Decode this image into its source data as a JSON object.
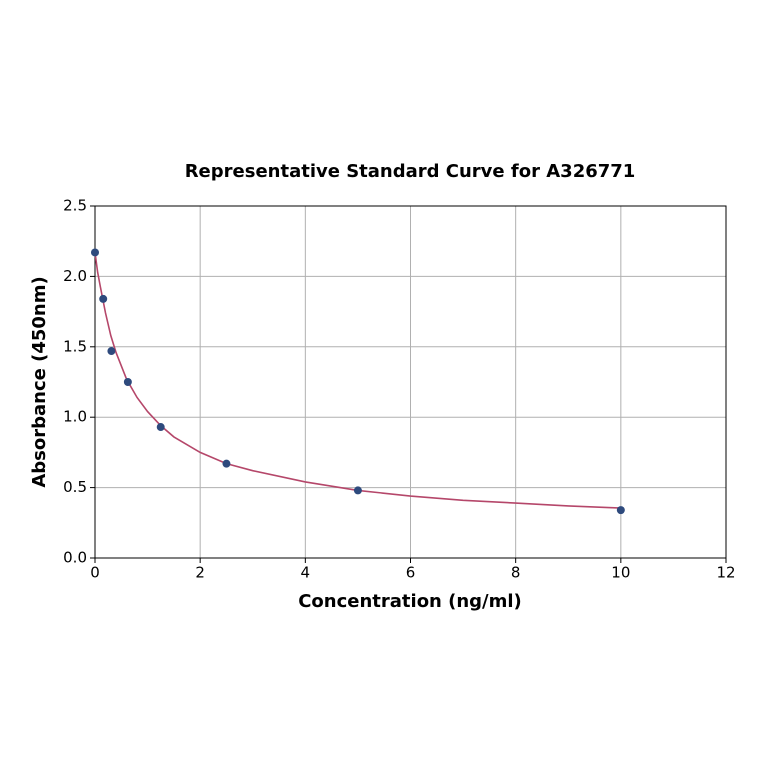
{
  "chart_data": {
    "type": "scatter",
    "title": "Representative Standard Curve for A326771",
    "x_label": "Concentration (ng/ml)",
    "y_label": "Absorbance (450nm)",
    "points": {
      "color": "#2e4a7d",
      "x": [
        0,
        0.156,
        0.312,
        0.625,
        1.25,
        2.5,
        5,
        10
      ],
      "values": [
        2.17,
        1.84,
        1.47,
        1.25,
        0.93,
        0.67,
        0.48,
        0.34
      ]
    },
    "curve": {
      "color": "#b5476a",
      "x": [
        0,
        0.05,
        0.1,
        0.2,
        0.3,
        0.4,
        0.6,
        0.8,
        1,
        1.25,
        1.5,
        2,
        2.5,
        3,
        4,
        5,
        6,
        7,
        8,
        9,
        10
      ],
      "values": [
        2.17,
        2.03,
        1.93,
        1.74,
        1.58,
        1.46,
        1.27,
        1.14,
        1.04,
        0.94,
        0.86,
        0.75,
        0.67,
        0.62,
        0.54,
        0.48,
        0.44,
        0.41,
        0.39,
        0.37,
        0.355
      ]
    },
    "xlim": [
      0,
      12
    ],
    "ylim": [
      0,
      2.5
    ],
    "xticks": [
      0,
      2,
      4,
      6,
      8,
      10,
      12
    ],
    "yticks": [
      {
        "value": 0,
        "label": "0.0"
      },
      0.5,
      {
        "value": 1,
        "label": "1.0"
      },
      1.5,
      {
        "value": 2,
        "label": "2.0"
      },
      2.5
    ],
    "grid": true
  }
}
